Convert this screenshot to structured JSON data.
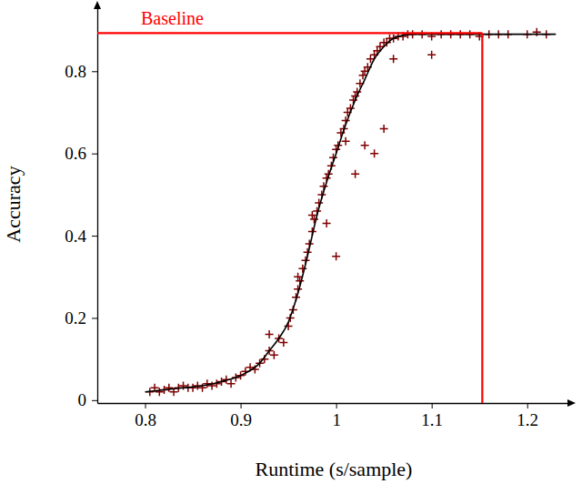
{
  "chart_data": {
    "type": "scatter",
    "x_label": "Runtime (s/sample)",
    "y_label": "Accuracy",
    "xlim": [
      0.75,
      1.245
    ],
    "ylim": [
      -0.007,
      0.96
    ],
    "xticks": [
      0.8,
      0.9,
      1,
      1.1,
      1.2
    ],
    "yticks": [
      0,
      0.2,
      0.4,
      0.6,
      0.8
    ],
    "grid": false,
    "series": [
      {
        "type": "scatter",
        "color": "#800000",
        "marker": "plus",
        "x": [
          0.805,
          0.81,
          0.815,
          0.82,
          0.825,
          0.83,
          0.835,
          0.84,
          0.845,
          0.85,
          0.855,
          0.86,
          0.865,
          0.87,
          0.875,
          0.88,
          0.885,
          0.89,
          0.895,
          0.9,
          0.905,
          0.91,
          0.915,
          0.92,
          0.925,
          0.93,
          0.935,
          0.94,
          0.945,
          0.95,
          0.952,
          0.955,
          0.958,
          0.96,
          0.962,
          0.965,
          0.968,
          0.97,
          0.972,
          0.975,
          0.977,
          0.98,
          0.982,
          0.985,
          0.987,
          0.99,
          0.992,
          0.995,
          0.997,
          1.0,
          1.002,
          1.005,
          1.008,
          1.01,
          1.012,
          1.015,
          1.018,
          1.02,
          1.022,
          1.025,
          1.028,
          1.03,
          1.033,
          1.036,
          1.04,
          1.043,
          1.046,
          1.05,
          1.053,
          1.056,
          1.06,
          1.065,
          1.07,
          1.075,
          1.08,
          1.09,
          1.1,
          1.11,
          1.12,
          1.13,
          1.14,
          1.15,
          1.16,
          1.17,
          1.18,
          1.2,
          1.21,
          1.22,
          1.0,
          0.99,
          1.02,
          1.03,
          1.04,
          1.05,
          1.01,
          1.1,
          1.06,
          0.93,
          0.96,
          0.975
        ],
        "values": [
          0.02,
          0.03,
          0.02,
          0.025,
          0.03,
          0.02,
          0.03,
          0.035,
          0.03,
          0.03,
          0.035,
          0.03,
          0.04,
          0.035,
          0.04,
          0.045,
          0.05,
          0.04,
          0.055,
          0.06,
          0.07,
          0.08,
          0.075,
          0.09,
          0.1,
          0.12,
          0.11,
          0.15,
          0.14,
          0.18,
          0.2,
          0.22,
          0.25,
          0.27,
          0.29,
          0.32,
          0.34,
          0.36,
          0.38,
          0.41,
          0.44,
          0.46,
          0.48,
          0.5,
          0.52,
          0.54,
          0.55,
          0.57,
          0.59,
          0.61,
          0.62,
          0.65,
          0.66,
          0.68,
          0.7,
          0.71,
          0.73,
          0.74,
          0.75,
          0.77,
          0.79,
          0.8,
          0.81,
          0.83,
          0.84,
          0.85,
          0.86,
          0.87,
          0.87,
          0.88,
          0.88,
          0.885,
          0.885,
          0.89,
          0.89,
          0.89,
          0.885,
          0.89,
          0.89,
          0.89,
          0.89,
          0.885,
          0.89,
          0.89,
          0.89,
          0.89,
          0.895,
          0.89,
          0.35,
          0.43,
          0.55,
          0.62,
          0.6,
          0.66,
          0.63,
          0.84,
          0.83,
          0.16,
          0.3,
          0.45
        ]
      },
      {
        "type": "line",
        "color": "#000000",
        "line_style": "solid",
        "x": [
          0.8,
          0.82,
          0.84,
          0.86,
          0.88,
          0.9,
          0.92,
          0.93,
          0.94,
          0.95,
          0.96,
          0.97,
          0.98,
          0.99,
          1.0,
          1.01,
          1.02,
          1.03,
          1.04,
          1.05,
          1.06,
          1.08,
          1.1,
          1.15,
          1.2,
          1.23
        ],
        "values": [
          0.02,
          0.025,
          0.03,
          0.035,
          0.045,
          0.06,
          0.09,
          0.12,
          0.15,
          0.19,
          0.26,
          0.35,
          0.45,
          0.53,
          0.6,
          0.67,
          0.73,
          0.78,
          0.83,
          0.86,
          0.88,
          0.89,
          0.89,
          0.89,
          0.89,
          0.89
        ]
      }
    ],
    "annotations": [
      {
        "text": "Baseline",
        "x": 1.153,
        "y": 0.893,
        "color": "#ff0000"
      }
    ]
  }
}
